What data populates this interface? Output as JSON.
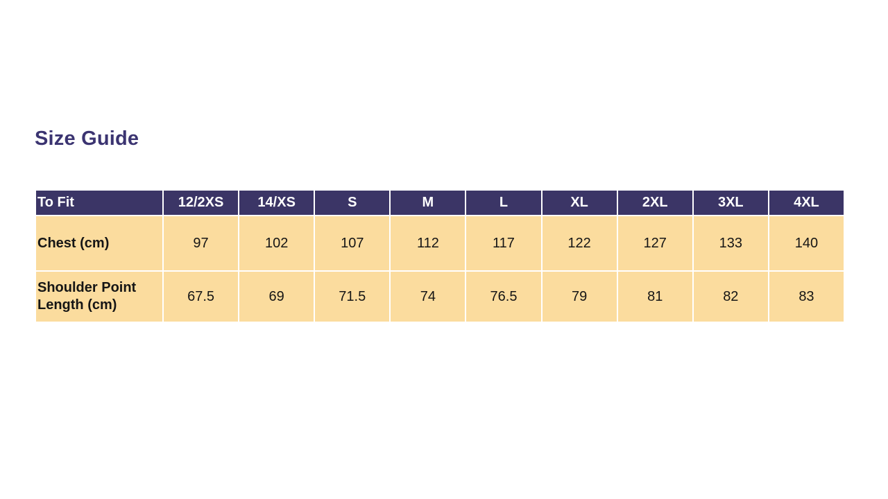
{
  "title": {
    "text": "Size Guide"
  },
  "colors": {
    "slide_bg": "#FFFFFF",
    "title": "#3B3471",
    "header_bg": "#3B3566",
    "header_text": "#FFFFFF",
    "body_bg": "#FBDC9E",
    "body_text": "#151515",
    "grid": "#FFFFFF"
  },
  "table": {
    "header": {
      "label": "To Fit",
      "sizes": [
        "12/2XS",
        "14/XS",
        "S",
        "M",
        "L",
        "XL",
        "2XL",
        "3XL",
        "4XL"
      ]
    },
    "rows": [
      {
        "label": "Chest (cm)",
        "values": [
          "97",
          "102",
          "107",
          "112",
          "117",
          "122",
          "127",
          "133",
          "140"
        ]
      },
      {
        "label": "Shoulder Point Length (cm)",
        "values": [
          "67.5",
          "69",
          "71.5",
          "74",
          "76.5",
          "79",
          "81",
          "82",
          "83"
        ]
      }
    ]
  }
}
